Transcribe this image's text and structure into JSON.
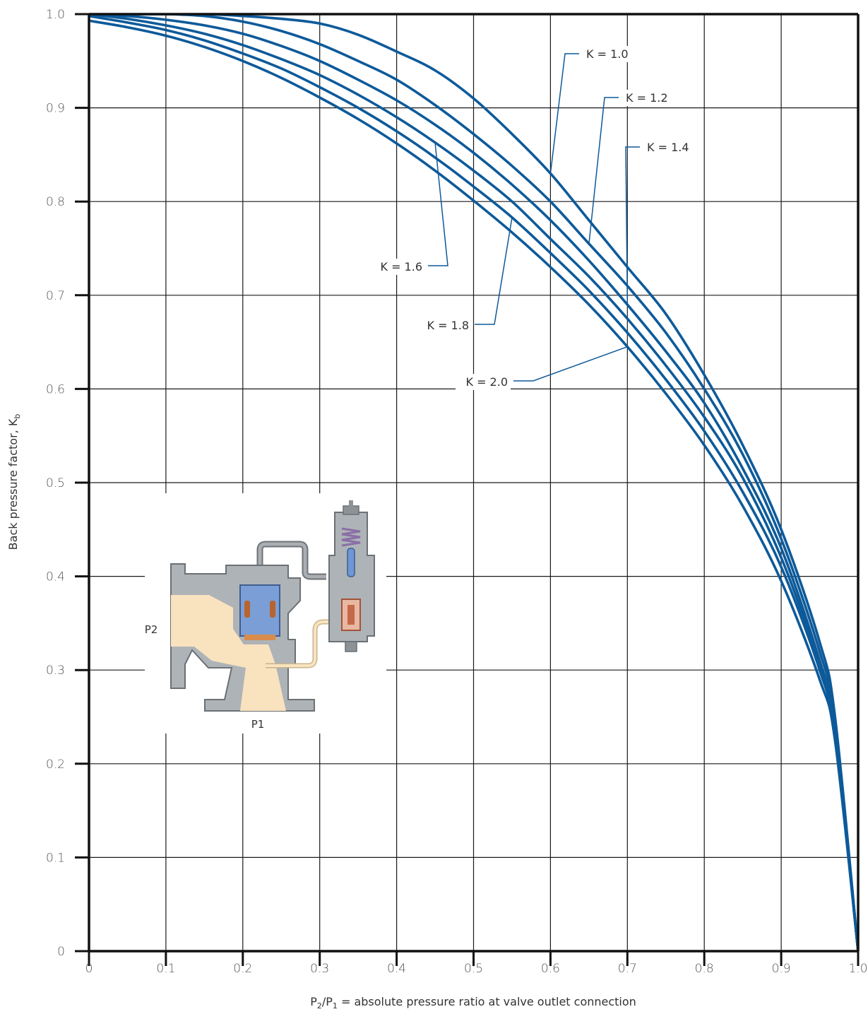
{
  "chart_data": {
    "type": "line",
    "xlabel_main": "P",
    "xlabel_sub1": "2",
    "xlabel_mid": "/P",
    "xlabel_sub2": "1",
    "xlabel_rest": " = absolute pressure ratio at valve outlet connection",
    "ylabel_main": "Back pressure factor, K",
    "ylabel_sub": "b",
    "xlim": [
      0,
      1.0
    ],
    "ylim": [
      0,
      1.0
    ],
    "x_ticks": [
      "0",
      "0.1",
      "0.2",
      "0.3",
      "0.4",
      "0.5",
      "0.6",
      "0.7",
      "0.8",
      "0.9",
      "1.0"
    ],
    "y_ticks": [
      "0",
      "0.1",
      "0.2",
      "0.3",
      "0.4",
      "0.5",
      "0.6",
      "0.7",
      "0.8",
      "0.9",
      "1.0"
    ],
    "grid": true,
    "line_color": "#0d5a9a",
    "x": [
      0,
      0.05,
      0.1,
      0.15,
      0.2,
      0.25,
      0.3,
      0.35,
      0.4,
      0.45,
      0.5,
      0.55,
      0.6,
      0.65,
      0.7,
      0.75,
      0.8,
      0.85,
      0.9,
      0.95,
      0.97,
      1.0
    ],
    "series": [
      {
        "name": "K = 1.0",
        "values": [
          1.0,
          1.0,
          1.0,
          1.0,
          0.998,
          0.995,
          0.99,
          0.978,
          0.96,
          0.94,
          0.91,
          0.872,
          0.83,
          0.78,
          0.73,
          0.68,
          0.615,
          0.54,
          0.45,
          0.33,
          0.25,
          0.0
        ]
      },
      {
        "name": "K = 1.2",
        "values": [
          1.0,
          1.0,
          1.0,
          0.998,
          0.992,
          0.982,
          0.968,
          0.95,
          0.93,
          0.903,
          0.872,
          0.838,
          0.8,
          0.755,
          0.71,
          0.66,
          0.6,
          0.53,
          0.44,
          0.32,
          0.245,
          0.0
        ]
      },
      {
        "name": "K = 1.4",
        "values": [
          1.0,
          0.998,
          0.994,
          0.988,
          0.979,
          0.966,
          0.95,
          0.93,
          0.908,
          0.882,
          0.852,
          0.818,
          0.78,
          0.737,
          0.69,
          0.64,
          0.585,
          0.515,
          0.43,
          0.31,
          0.24,
          0.0
        ]
      },
      {
        "name": "K = 1.6",
        "values": [
          1.0,
          0.995,
          0.988,
          0.979,
          0.967,
          0.952,
          0.935,
          0.914,
          0.89,
          0.863,
          0.833,
          0.8,
          0.76,
          0.72,
          0.675,
          0.625,
          0.57,
          0.505,
          0.42,
          0.305,
          0.235,
          0.0
        ]
      },
      {
        "name": "K = 1.8",
        "values": [
          0.998,
          0.991,
          0.983,
          0.972,
          0.958,
          0.942,
          0.922,
          0.9,
          0.875,
          0.847,
          0.816,
          0.783,
          0.745,
          0.705,
          0.66,
          0.61,
          0.555,
          0.49,
          0.41,
          0.3,
          0.23,
          0.0
        ]
      },
      {
        "name": "K = 2.0",
        "values": [
          0.993,
          0.986,
          0.977,
          0.965,
          0.95,
          0.932,
          0.911,
          0.888,
          0.862,
          0.833,
          0.801,
          0.767,
          0.73,
          0.69,
          0.645,
          0.595,
          0.54,
          0.475,
          0.395,
          0.29,
          0.225,
          0.0
        ]
      }
    ],
    "annotations": [
      {
        "label": "K = 1.0",
        "series": 0
      },
      {
        "label": "K = 1.2",
        "series": 1
      },
      {
        "label": "K = 1.4",
        "series": 2
      },
      {
        "label": "K = 1.6",
        "series": 3
      },
      {
        "label": "K = 1.8",
        "series": 4
      },
      {
        "label": "K = 2.0",
        "series": 5
      }
    ]
  },
  "valve": {
    "label_outlet": "P2",
    "label_inlet": "P1"
  }
}
